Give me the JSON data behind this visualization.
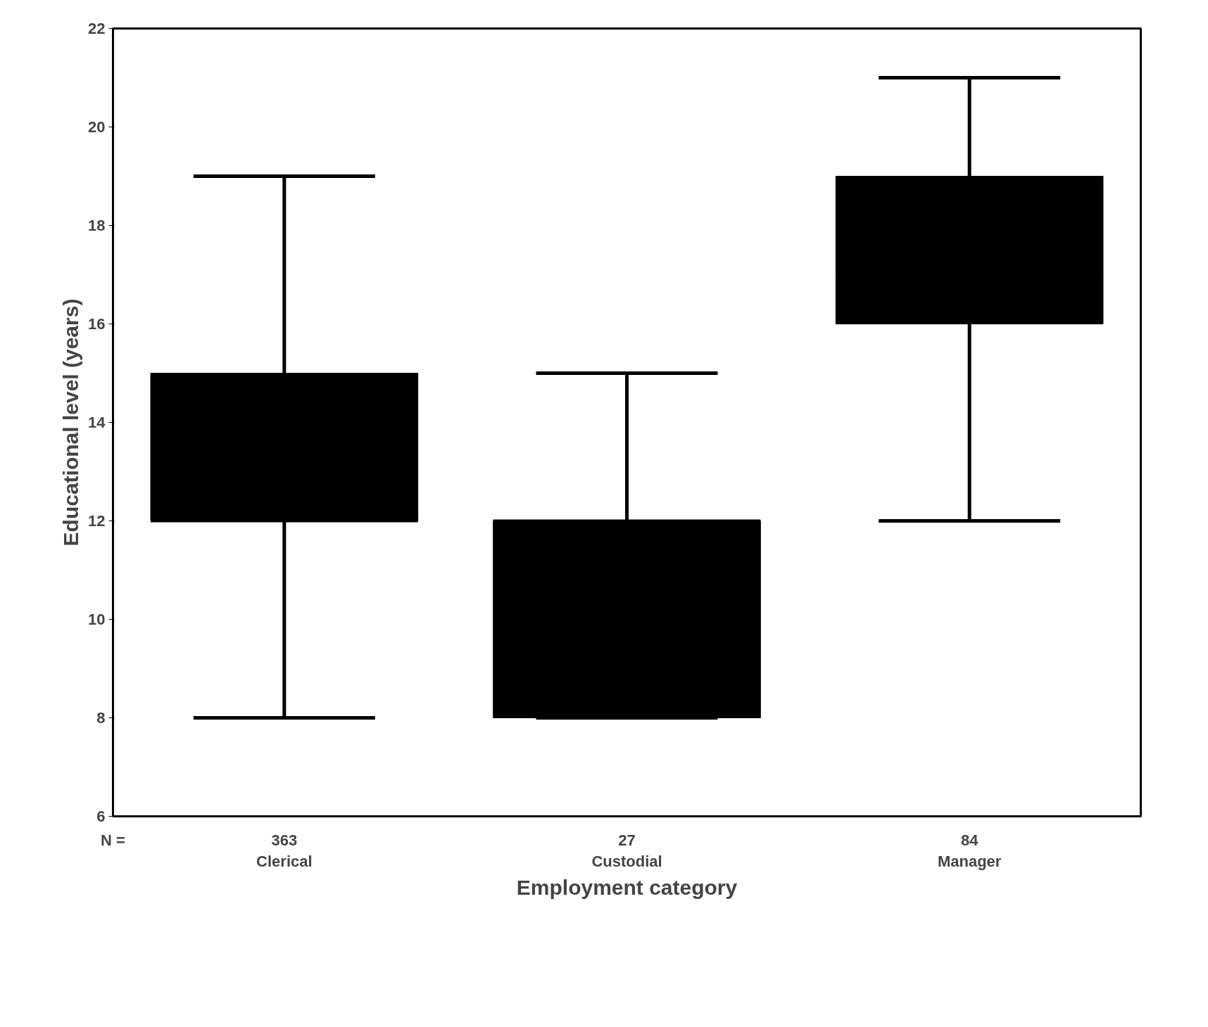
{
  "chart_data": {
    "type": "box",
    "xlabel": "Employment category",
    "ylabel": "Educational level (years)",
    "categories": [
      "Clerical",
      "Custodial",
      "Manager"
    ],
    "boxes": [
      {
        "low": 8,
        "q1": 12,
        "median": 12,
        "q3": 15,
        "high": 19
      },
      {
        "low": 8,
        "q1": 8,
        "median": 12,
        "q3": 12,
        "high": 15
      },
      {
        "low": 12,
        "q1": 16,
        "median": 17,
        "q3": 19,
        "high": 21
      }
    ],
    "color": "#000000",
    "ylim": [
      6,
      22
    ],
    "yticks": [
      6,
      8,
      10,
      12,
      14,
      16,
      18,
      20,
      22
    ],
    "grid": false,
    "annotations": [
      "N =",
      "363",
      "27",
      "84"
    ]
  }
}
